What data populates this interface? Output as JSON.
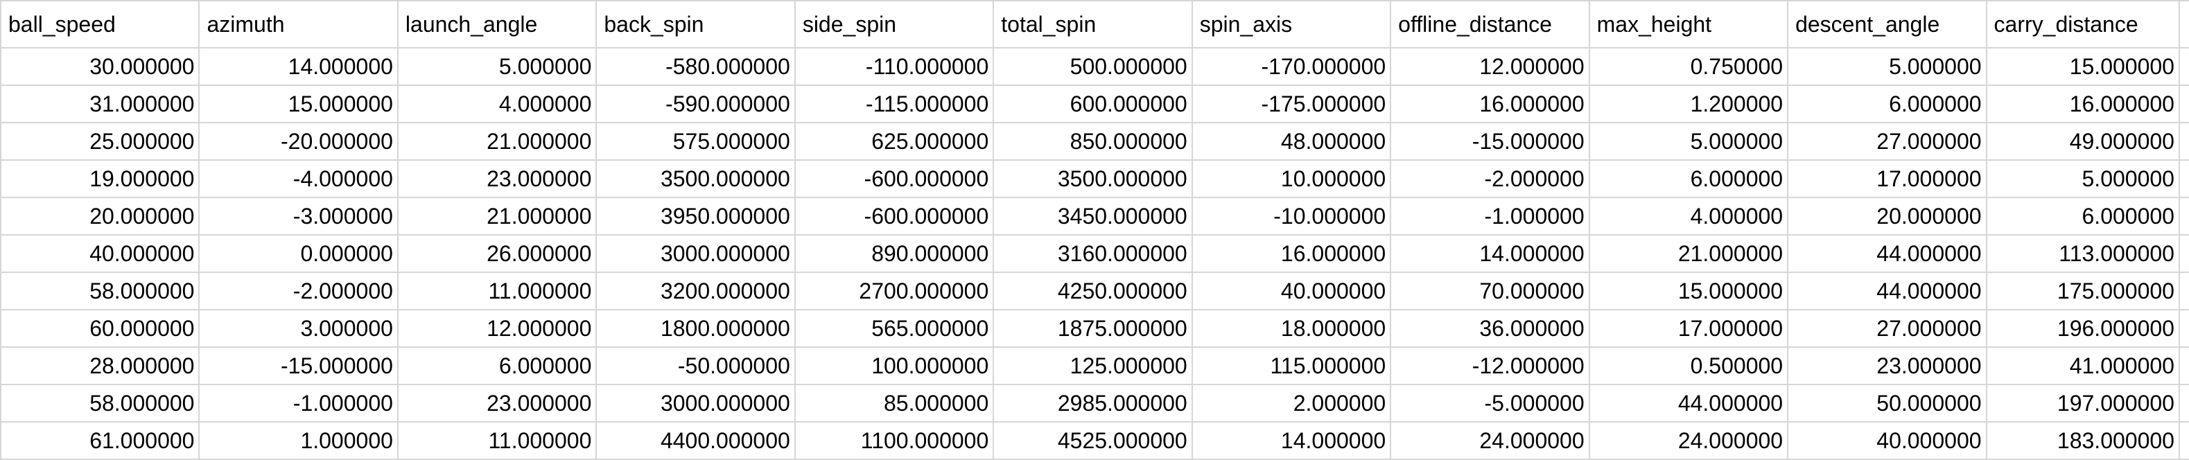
{
  "sheet": {
    "columns": [
      "ball_speed",
      "azimuth",
      "launch_angle",
      "back_spin",
      "side_spin",
      "total_spin",
      "spin_axis",
      "offline_distance",
      "max_height",
      "descent_angle",
      "carry_distance"
    ],
    "rows": [
      [
        "30.000000",
        "14.000000",
        "5.000000",
        "-580.000000",
        "-110.000000",
        "500.000000",
        "-170.000000",
        "12.000000",
        "0.750000",
        "5.000000",
        "15.000000"
      ],
      [
        "31.000000",
        "15.000000",
        "4.000000",
        "-590.000000",
        "-115.000000",
        "600.000000",
        "-175.000000",
        "16.000000",
        "1.200000",
        "6.000000",
        "16.000000"
      ],
      [
        "25.000000",
        "-20.000000",
        "21.000000",
        "575.000000",
        "625.000000",
        "850.000000",
        "48.000000",
        "-15.000000",
        "5.000000",
        "27.000000",
        "49.000000"
      ],
      [
        "19.000000",
        "-4.000000",
        "23.000000",
        "3500.000000",
        "-600.000000",
        "3500.000000",
        "10.000000",
        "-2.000000",
        "6.000000",
        "17.000000",
        "5.000000"
      ],
      [
        "20.000000",
        "-3.000000",
        "21.000000",
        "3950.000000",
        "-600.000000",
        "3450.000000",
        "-10.000000",
        "-1.000000",
        "4.000000",
        "20.000000",
        "6.000000"
      ],
      [
        "40.000000",
        "0.000000",
        "26.000000",
        "3000.000000",
        "890.000000",
        "3160.000000",
        "16.000000",
        "14.000000",
        "21.000000",
        "44.000000",
        "113.000000"
      ],
      [
        "58.000000",
        "-2.000000",
        "11.000000",
        "3200.000000",
        "2700.000000",
        "4250.000000",
        "40.000000",
        "70.000000",
        "15.000000",
        "44.000000",
        "175.000000"
      ],
      [
        "60.000000",
        "3.000000",
        "12.000000",
        "1800.000000",
        "565.000000",
        "1875.000000",
        "18.000000",
        "36.000000",
        "17.000000",
        "27.000000",
        "196.000000"
      ],
      [
        "28.000000",
        "-15.000000",
        "6.000000",
        "-50.000000",
        "100.000000",
        "125.000000",
        "115.000000",
        "-12.000000",
        "0.500000",
        "23.000000",
        "41.000000"
      ],
      [
        "58.000000",
        "-1.000000",
        "23.000000",
        "3000.000000",
        "85.000000",
        "2985.000000",
        "2.000000",
        "-5.000000",
        "44.000000",
        "50.000000",
        "197.000000"
      ],
      [
        "61.000000",
        "1.000000",
        "11.000000",
        "4400.000000",
        "1100.000000",
        "4525.000000",
        "14.000000",
        "24.000000",
        "24.000000",
        "40.000000",
        "183.000000"
      ]
    ]
  }
}
